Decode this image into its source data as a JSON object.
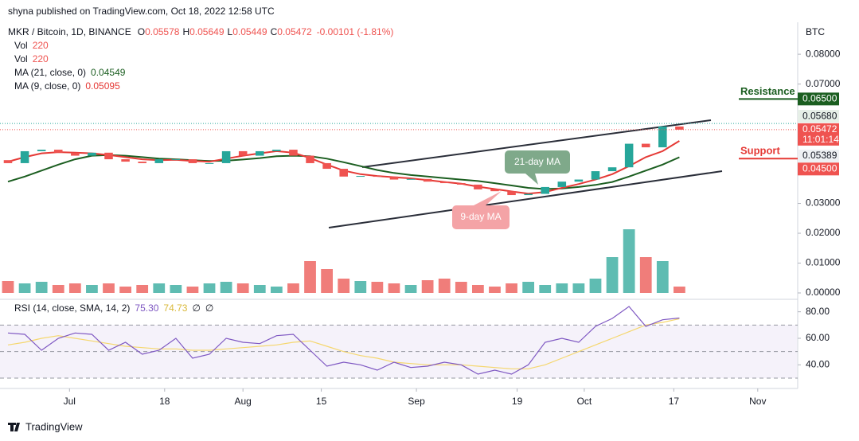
{
  "header": {
    "published": "shyna published on TradingView.com, Oct 18, 2022 12:58 UTC",
    "logo": "TradingView"
  },
  "chart_data": {
    "type": "candlestick",
    "legend": {
      "symbol": "MKR / Bitcoin, 1D, BINANCE",
      "quote": [
        "O",
        "0.05578",
        "H",
        "0.05649",
        "L",
        "0.05449",
        "C",
        "0.05472",
        "-0.00101 (-1.81%)"
      ],
      "vol_label": "Vol",
      "vol_value": "220",
      "ma21_label": "MA (21, close, 0)",
      "ma21_value": "0.04549",
      "ma9_label": "MA (9, close, 0)",
      "ma9_value": "0.05095"
    },
    "currency": "BTC",
    "x": [
      0,
      3,
      6,
      9,
      12,
      15,
      18,
      21,
      24,
      27,
      30,
      33,
      36,
      39,
      42,
      45,
      48,
      51,
      54,
      57,
      60,
      63,
      66,
      69,
      72,
      75,
      78,
      81,
      84,
      87,
      90,
      93,
      96,
      99,
      102,
      105,
      108,
      111,
      114,
      117,
      120
    ],
    "xlim": [
      0,
      141
    ],
    "xticks": [
      {
        "value": 11,
        "label": "Jul"
      },
      {
        "value": 28,
        "label": "18"
      },
      {
        "value": 42,
        "label": "Aug"
      },
      {
        "value": 56,
        "label": "15"
      },
      {
        "value": 73,
        "label": "Sep"
      },
      {
        "value": 91,
        "label": "19"
      },
      {
        "value": 103,
        "label": "Oct"
      },
      {
        "value": 119,
        "label": "17"
      },
      {
        "value": 134,
        "label": "Nov"
      }
    ],
    "open": [
      0.0445,
      0.0435,
      0.0475,
      0.048,
      0.047,
      0.046,
      0.047,
      0.0448,
      0.044,
      0.0435,
      0.0448,
      0.0448,
      0.0435,
      0.0435,
      0.0475,
      0.046,
      0.0475,
      0.048,
      0.046,
      0.0435,
      0.0416,
      0.039,
      0.0392,
      0.039,
      0.038,
      0.0382,
      0.0373,
      0.0368,
      0.0363,
      0.0347,
      0.0341,
      0.0328,
      0.0332,
      0.0355,
      0.0373,
      0.038,
      0.0408,
      0.0421,
      0.05,
      0.0488,
      0.05578
    ],
    "close": [
      0.0435,
      0.0475,
      0.048,
      0.047,
      0.046,
      0.047,
      0.0448,
      0.044,
      0.0435,
      0.0448,
      0.0448,
      0.0435,
      0.0435,
      0.0475,
      0.046,
      0.0475,
      0.048,
      0.046,
      0.0435,
      0.0416,
      0.039,
      0.0392,
      0.039,
      0.038,
      0.0382,
      0.0373,
      0.0368,
      0.0363,
      0.0347,
      0.0341,
      0.0328,
      0.0332,
      0.0355,
      0.0373,
      0.038,
      0.0408,
      0.0421,
      0.05,
      0.0488,
      0.0558,
      0.05472
    ],
    "up_color": "#26a69a",
    "down_color": "#ef5350",
    "ma21": {
      "color": "#1b5e20",
      "values": [
        0.0373,
        0.039,
        0.041,
        0.043,
        0.0448,
        0.046,
        0.0462,
        0.046,
        0.0455,
        0.045,
        0.0448,
        0.0445,
        0.0442,
        0.0443,
        0.0447,
        0.0452,
        0.0458,
        0.046,
        0.0458,
        0.045,
        0.0438,
        0.0425,
        0.0412,
        0.0402,
        0.0395,
        0.039,
        0.0385,
        0.038,
        0.0375,
        0.0368,
        0.036,
        0.0352,
        0.0348,
        0.035,
        0.0355,
        0.0362,
        0.0372,
        0.039,
        0.041,
        0.043,
        0.04549
      ]
    },
    "ma9": {
      "color": "#e53935",
      "values": [
        0.044,
        0.0455,
        0.0468,
        0.0472,
        0.047,
        0.0468,
        0.0462,
        0.0455,
        0.0448,
        0.0445,
        0.0446,
        0.0442,
        0.044,
        0.045,
        0.046,
        0.0468,
        0.0475,
        0.047,
        0.0452,
        0.043,
        0.041,
        0.0398,
        0.0392,
        0.0388,
        0.0384,
        0.0378,
        0.0372,
        0.0366,
        0.0356,
        0.0348,
        0.034,
        0.0333,
        0.0338,
        0.0352,
        0.0365,
        0.038,
        0.0398,
        0.0425,
        0.0455,
        0.0475,
        0.05095
      ]
    },
    "volume": {
      "ylim": [
        0,
        100
      ],
      "up_color": "#5fbcb2",
      "down_color": "#f07d7a",
      "values": [
        15,
        12,
        14,
        10,
        12,
        10,
        12,
        8,
        10,
        12,
        10,
        8,
        12,
        14,
        12,
        10,
        8,
        12,
        40,
        30,
        18,
        15,
        14,
        12,
        10,
        16,
        18,
        14,
        10,
        8,
        12,
        14,
        10,
        12,
        12,
        18,
        45,
        80,
        45,
        40,
        8
      ]
    },
    "ylim": [
      0,
      0.0907
    ],
    "yticks": [
      {
        "value": 0.08,
        "label": "0.08000"
      },
      {
        "value": 0.07,
        "label": "0.07000"
      },
      {
        "value": 0.03,
        "label": "0.03000"
      },
      {
        "value": 0.02,
        "label": "0.02000"
      },
      {
        "value": 0.01,
        "label": "0.01000"
      },
      {
        "value": 0,
        "label": "0.00000"
      }
    ],
    "price_labels": [
      {
        "value": 0.065,
        "label": "0.06500",
        "bg": "#1b5e20",
        "fg": "#ffffff"
      },
      {
        "value": 0.0568,
        "label": "0.05680",
        "bg": "#e6efe7",
        "fg": "#131722"
      },
      {
        "value": 0.05472,
        "label": "0.05472",
        "extra": "11:01:14",
        "bg": "#ef5350",
        "fg": "#ffffff"
      },
      {
        "value": 0.05389,
        "label": "0.05389",
        "bg": "#eef0f3",
        "fg": "#131722"
      },
      {
        "value": 0.045,
        "label": "0.04500",
        "bg": "#ef5350",
        "fg": "#ffffff"
      }
    ],
    "resistance": {
      "text": "Resistance",
      "value": 0.065,
      "color": "#1b5e20"
    },
    "support": {
      "text": "Support",
      "value": 0.045,
      "color": "#e53935"
    },
    "notes": [
      "21-day MA",
      "9-day MA"
    ],
    "rsi": {
      "label": "RSI (14, close, SMA, 14, 2)",
      "value": "75.30",
      "sma_value": "74.73",
      "extra": [
        "∅",
        "∅"
      ],
      "color": "#7e57c2",
      "sma_color": "#f5d76e",
      "ylim": [
        24,
        87
      ],
      "yticks": [
        {
          "value": 80,
          "label": "80.00"
        },
        {
          "value": 60,
          "label": "60.00"
        },
        {
          "value": 40,
          "label": "40.00"
        }
      ],
      "band": [
        30,
        70
      ],
      "mid": 50,
      "values": [
        64,
        63,
        51,
        60,
        64,
        63,
        51,
        57,
        48,
        51,
        60,
        45,
        48,
        60,
        57,
        56,
        62,
        63,
        51,
        39,
        42,
        40,
        36,
        42,
        38,
        39,
        42,
        40,
        33,
        36,
        33,
        40,
        57,
        60,
        57,
        69,
        75,
        84,
        69,
        74,
        75.3
      ],
      "sma_values": [
        55,
        57,
        60,
        62,
        60,
        58,
        56,
        54,
        53,
        52,
        52,
        51,
        51,
        52,
        53,
        54,
        55,
        57,
        58,
        54,
        50,
        47,
        45,
        42,
        41,
        40,
        40,
        40,
        39,
        38,
        37,
        37,
        40,
        45,
        50,
        55,
        60,
        65,
        70,
        72,
        74.73
      ]
    }
  }
}
